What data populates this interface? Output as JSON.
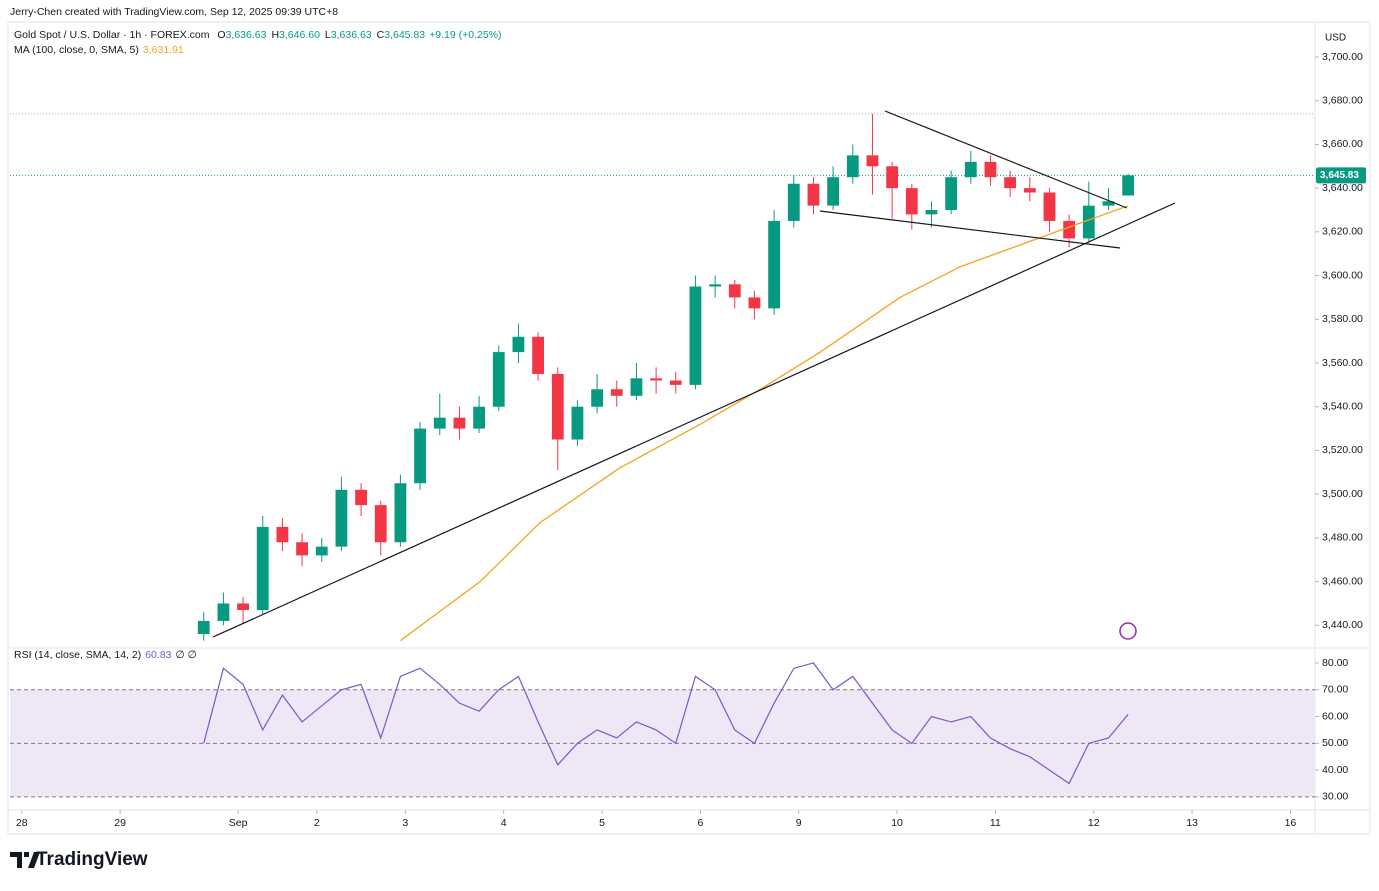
{
  "header": {
    "attribution": "Jerry-Chen created with TradingView.com, Sep 12, 2025 09:39 UTC+8"
  },
  "footer": {
    "brand": "TradingView"
  },
  "chart_data": [
    {
      "type": "candlestick",
      "title": "Gold Spot / U.S. Dollar · 1h · FOREX.com",
      "currency": "USD",
      "ohlc_legend": [
        {
          "key": "O",
          "value": "3,636.63"
        },
        {
          "key": "H",
          "value": "3,646.60"
        },
        {
          "key": "L",
          "value": "3,636.63"
        },
        {
          "key": "C",
          "value": "3,645.83"
        }
      ],
      "change": "+9.19 (+0.25%)",
      "up_color": "#089981",
      "down_color": "#f23645",
      "x": [
        1.85,
        2.05,
        2.25,
        2.45,
        2.65,
        2.85,
        3.05,
        3.25,
        3.45,
        3.65,
        3.85,
        4.05,
        4.25,
        4.45,
        4.65,
        4.85,
        5.05,
        5.25,
        5.45,
        5.65,
        5.85,
        6.05,
        6.25,
        6.45,
        6.65,
        6.85,
        7.05,
        7.25,
        7.45,
        7.65,
        7.85,
        8.05,
        8.25,
        8.45,
        8.65,
        8.85,
        9.05,
        9.25,
        9.45,
        9.65,
        9.85,
        10.05,
        10.25,
        10.45,
        10.65,
        10.85,
        11.05,
        11.25
      ],
      "open": [
        3436,
        3442,
        3450,
        3447,
        3485,
        3478,
        3472,
        3476,
        3502,
        3495,
        3478,
        3505,
        3530,
        3535,
        3530,
        3540,
        3565,
        3572,
        3555,
        3525,
        3540,
        3548,
        3545,
        3553,
        3552,
        3550,
        3595,
        3596,
        3590,
        3585,
        3625,
        3642,
        3632,
        3645,
        3655,
        3650,
        3640,
        3628,
        3630,
        3645,
        3652,
        3645,
        3640,
        3638,
        3625,
        3617,
        3632,
        3636.63
      ],
      "high": [
        3446,
        3455,
        3453,
        3490,
        3489,
        3482,
        3480,
        3508,
        3505,
        3497,
        3509,
        3533,
        3546,
        3540,
        3545,
        3568,
        3578,
        3574,
        3558,
        3543,
        3555,
        3552,
        3560,
        3558,
        3556,
        3600,
        3600,
        3598,
        3593,
        3630,
        3646,
        3645,
        3650,
        3660,
        3674,
        3652,
        3642,
        3634,
        3648,
        3657,
        3655,
        3648,
        3645,
        3640,
        3628,
        3643,
        3640,
        3646.6
      ],
      "low": [
        3433,
        3440,
        3441,
        3445,
        3474,
        3467,
        3469,
        3474,
        3490,
        3472,
        3476,
        3502,
        3527,
        3525,
        3528,
        3538,
        3560,
        3552,
        3511,
        3522,
        3537,
        3540,
        3543,
        3546,
        3546,
        3548,
        3590,
        3585,
        3580,
        3582,
        3622,
        3628,
        3630,
        3642,
        3637,
        3626,
        3621,
        3622,
        3628,
        3642,
        3641,
        3636,
        3634,
        3620,
        3613,
        3615,
        3630,
        3636.63
      ],
      "close": [
        3442,
        3450,
        3447,
        3485,
        3478,
        3472,
        3476,
        3502,
        3495,
        3478,
        3505,
        3530,
        3535,
        3530,
        3540,
        3565,
        3572,
        3555,
        3525,
        3540,
        3548,
        3545,
        3553,
        3552,
        3550,
        3595,
        3596,
        3590,
        3585,
        3625,
        3642,
        3632,
        3645,
        3655,
        3650,
        3640,
        3628,
        3630,
        3645,
        3652,
        3645,
        3640,
        3638,
        3625,
        3617,
        3632,
        3634,
        3645.83
      ],
      "last_price": 3645.83,
      "last_price_label": "3,645.83",
      "high_line": 3674,
      "series": [
        {
          "name": "MA (100, close, 0, SMA, 5)",
          "color": "#f7a21b",
          "value_label": "3,631.91",
          "x": [
            3.85,
            4.66,
            5.27,
            6.08,
            6.9,
            7.51,
            8.12,
            8.93,
            9.54,
            10.15,
            10.76,
            11.25
          ],
          "values": [
            3433,
            3460,
            3487,
            3512,
            3532,
            3548,
            3565,
            3590,
            3604,
            3614,
            3624,
            3631.91
          ]
        }
      ],
      "xlim": [
        -0.12,
        13.15
      ],
      "ylim": [
        3431,
        3716
      ],
      "yticks": [
        {
          "value": 3440,
          "label": "3,440.00"
        },
        {
          "value": 3460,
          "label": "3,460.00"
        },
        {
          "value": 3480,
          "label": "3,480.00"
        },
        {
          "value": 3500,
          "label": "3,500.00"
        },
        {
          "value": 3520,
          "label": "3,520.00"
        },
        {
          "value": 3540,
          "label": "3,540.00"
        },
        {
          "value": 3560,
          "label": "3,560.00"
        },
        {
          "value": 3580,
          "label": "3,580.00"
        },
        {
          "value": 3600,
          "label": "3,600.00"
        },
        {
          "value": 3620,
          "label": "3,620.00"
        },
        {
          "value": 3640,
          "label": "3,640.00"
        },
        {
          "value": 3660,
          "label": "3,660.00"
        },
        {
          "value": 3680,
          "label": "3,680.00"
        },
        {
          "value": 3700,
          "label": "3,700.00"
        }
      ]
    },
    {
      "type": "line",
      "title": "RSI (14, close, SMA, 14, 2)",
      "value_label": "60.83",
      "extra": "∅ ∅",
      "color": "#7e57c2",
      "band_color": "#ede7f6",
      "x": [
        1.85,
        2.05,
        2.25,
        2.45,
        2.65,
        2.85,
        3.05,
        3.25,
        3.45,
        3.65,
        3.85,
        4.05,
        4.25,
        4.45,
        4.65,
        4.85,
        5.05,
        5.25,
        5.45,
        5.65,
        5.85,
        6.05,
        6.25,
        6.45,
        6.65,
        6.85,
        7.05,
        7.25,
        7.45,
        7.65,
        7.85,
        8.05,
        8.25,
        8.45,
        8.65,
        8.85,
        9.05,
        9.25,
        9.45,
        9.65,
        9.85,
        10.05,
        10.25,
        10.45,
        10.65,
        10.85,
        11.05,
        11.25
      ],
      "values": [
        50,
        78,
        72,
        55,
        68,
        58,
        64,
        70,
        72,
        52,
        75,
        78,
        72,
        65,
        62,
        70,
        75,
        58,
        42,
        50,
        55,
        52,
        58,
        55,
        50,
        75,
        70,
        55,
        50,
        65,
        78,
        80,
        70,
        75,
        65,
        55,
        50,
        60,
        58,
        60,
        52,
        48,
        45,
        40,
        35,
        50,
        52,
        60.83
      ],
      "bands": [
        30,
        50,
        70
      ],
      "xlim": [
        -0.12,
        13.15
      ],
      "ylim": [
        26.6,
        84.1
      ],
      "yticks": [
        {
          "value": 30,
          "label": "30.00"
        },
        {
          "value": 40,
          "label": "40.00"
        },
        {
          "value": 50,
          "label": "50.00"
        },
        {
          "value": 60,
          "label": "60.00"
        },
        {
          "value": 70,
          "label": "70.00"
        },
        {
          "value": 80,
          "label": "80.00"
        }
      ],
      "xticks": [
        {
          "value": 0,
          "label": "28"
        },
        {
          "value": 1,
          "label": "29"
        },
        {
          "value": 2.2,
          "label": "Sep"
        },
        {
          "value": 3,
          "label": "2"
        },
        {
          "value": 3.9,
          "label": "3"
        },
        {
          "value": 4.9,
          "label": "4"
        },
        {
          "value": 5.9,
          "label": "5"
        },
        {
          "value": 6.9,
          "label": "6"
        },
        {
          "value": 7.9,
          "label": "9"
        },
        {
          "value": 8.9,
          "label": "10"
        },
        {
          "value": 9.9,
          "label": "11"
        },
        {
          "value": 10.9,
          "label": "12"
        },
        {
          "value": 11.9,
          "label": "13"
        },
        {
          "value": 12.9,
          "label": "16"
        }
      ]
    }
  ]
}
